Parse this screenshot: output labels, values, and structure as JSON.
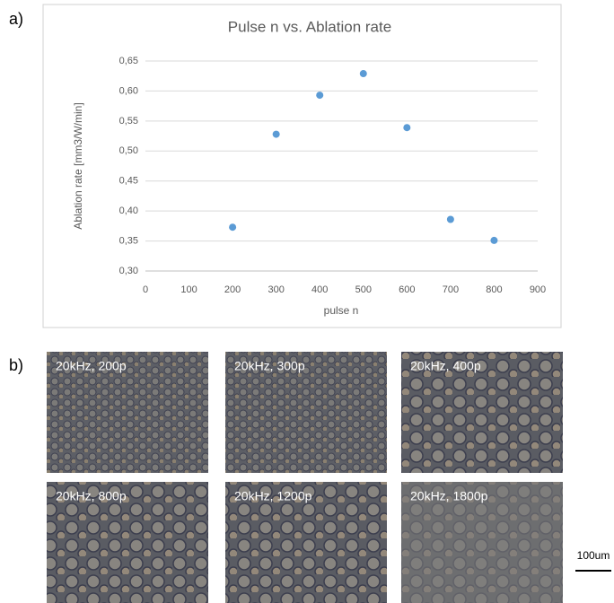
{
  "chart_data": {
    "type": "scatter",
    "title": "Pulse n vs. Ablation rate",
    "x_label": "pulse n",
    "y_label": "Ablation rate [mm3/W/min]",
    "x": [
      200,
      300,
      400,
      500,
      600,
      700,
      800
    ],
    "values": [
      0.373,
      0.528,
      0.593,
      0.629,
      0.539,
      0.386,
      0.351
    ],
    "color": "#5b9bd5",
    "xlim": [
      0,
      900
    ],
    "xticks": [
      0,
      100,
      200,
      300,
      400,
      500,
      600,
      700,
      800,
      900
    ],
    "ylim": [
      0.3,
      0.65
    ],
    "yticks": [
      {
        "value": 0.3,
        "label": "0,30"
      },
      {
        "value": 0.35,
        "label": "0,35"
      },
      {
        "value": 0.4,
        "label": "0,40"
      },
      {
        "value": 0.45,
        "label": "0,45"
      },
      {
        "value": 0.5,
        "label": "0,50"
      },
      {
        "value": 0.55,
        "label": "0,55"
      },
      {
        "value": 0.6,
        "label": "0,60"
      },
      {
        "value": 0.65,
        "label": "0,65"
      }
    ],
    "grid": true
  },
  "panel_labels": [
    "a)",
    "b)"
  ],
  "images": [
    {
      "label": "20kHz, 200p"
    },
    {
      "label": "20kHz, 300p"
    },
    {
      "label": "20kHz, 400p"
    },
    {
      "label": "20kHz, 800p"
    },
    {
      "label": "20kHz, 1200p"
    },
    {
      "label": "20kHz, 1800p"
    }
  ],
  "scale_bar": "100um"
}
